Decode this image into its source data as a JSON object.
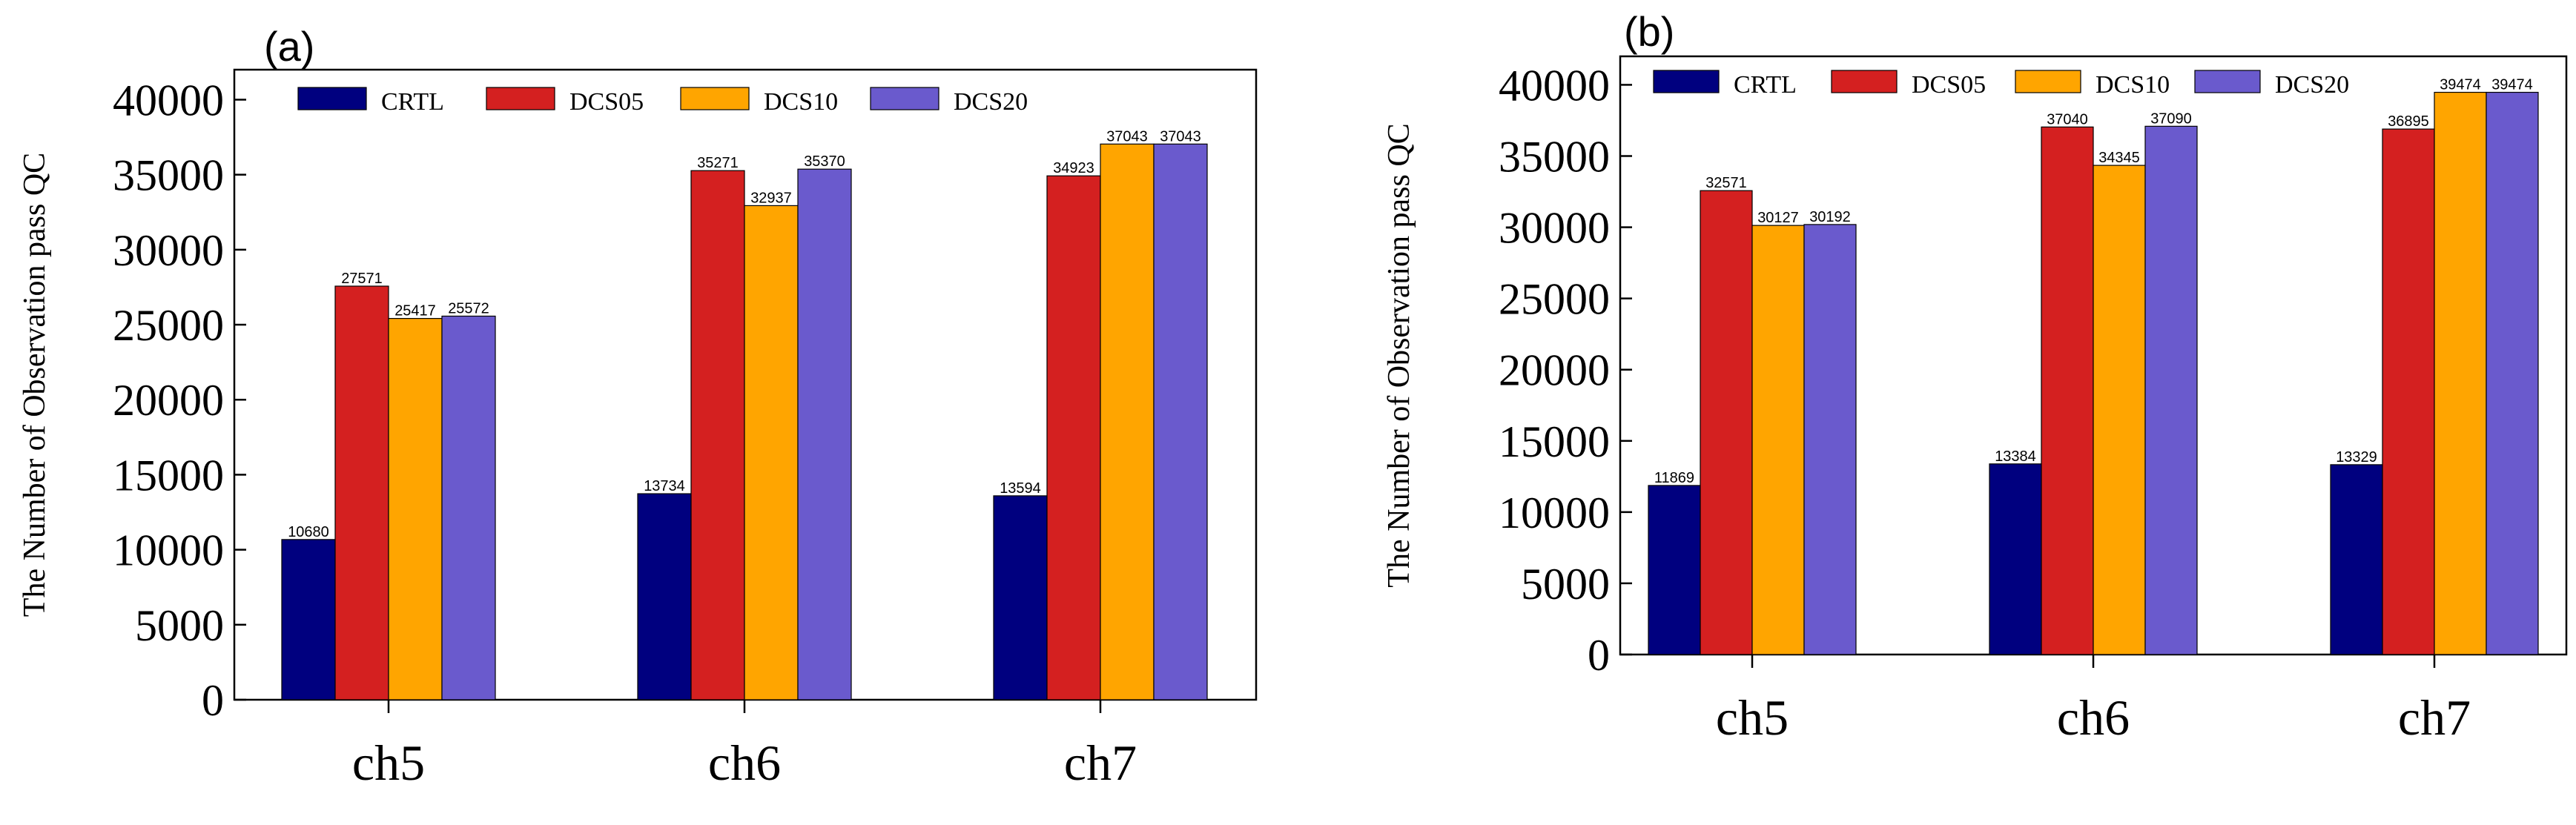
{
  "chart_data": [
    {
      "panel": "(a)",
      "type": "bar",
      "categories": [
        "ch5",
        "ch6",
        "ch7"
      ],
      "ylabel": "The Number of Observation pass QC",
      "ylim": [
        0,
        42000
      ],
      "yticks": [
        0,
        5000,
        10000,
        15000,
        20000,
        25000,
        30000,
        35000,
        40000
      ],
      "legend_position": "top",
      "series": [
        {
          "name": "CRTL",
          "color": "#00007f",
          "values": [
            10680,
            13734,
            13594
          ]
        },
        {
          "name": "DCS05",
          "color": "#d42020",
          "values": [
            27571,
            35271,
            34923
          ]
        },
        {
          "name": "DCS10",
          "color": "#ffa500",
          "values": [
            25417,
            32937,
            37043
          ]
        },
        {
          "name": "DCS20",
          "color": "#6a5acd",
          "values": [
            25572,
            35370,
            37043
          ]
        }
      ]
    },
    {
      "panel": "(b)",
      "type": "bar",
      "categories": [
        "ch5",
        "ch6",
        "ch7"
      ],
      "ylabel": "The Number of Observation pass QC",
      "ylim": [
        0,
        42000
      ],
      "yticks": [
        0,
        5000,
        10000,
        15000,
        20000,
        25000,
        30000,
        35000,
        40000
      ],
      "legend_position": "top",
      "series": [
        {
          "name": "CRTL",
          "color": "#00007f",
          "values": [
            11869,
            13384,
            13329
          ]
        },
        {
          "name": "DCS05",
          "color": "#d42020",
          "values": [
            32571,
            37040,
            36895
          ]
        },
        {
          "name": "DCS10",
          "color": "#ffa500",
          "values": [
            30127,
            34345,
            39474
          ]
        },
        {
          "name": "DCS20",
          "color": "#6a5acd",
          "values": [
            30192,
            37090,
            39474
          ]
        }
      ]
    }
  ]
}
